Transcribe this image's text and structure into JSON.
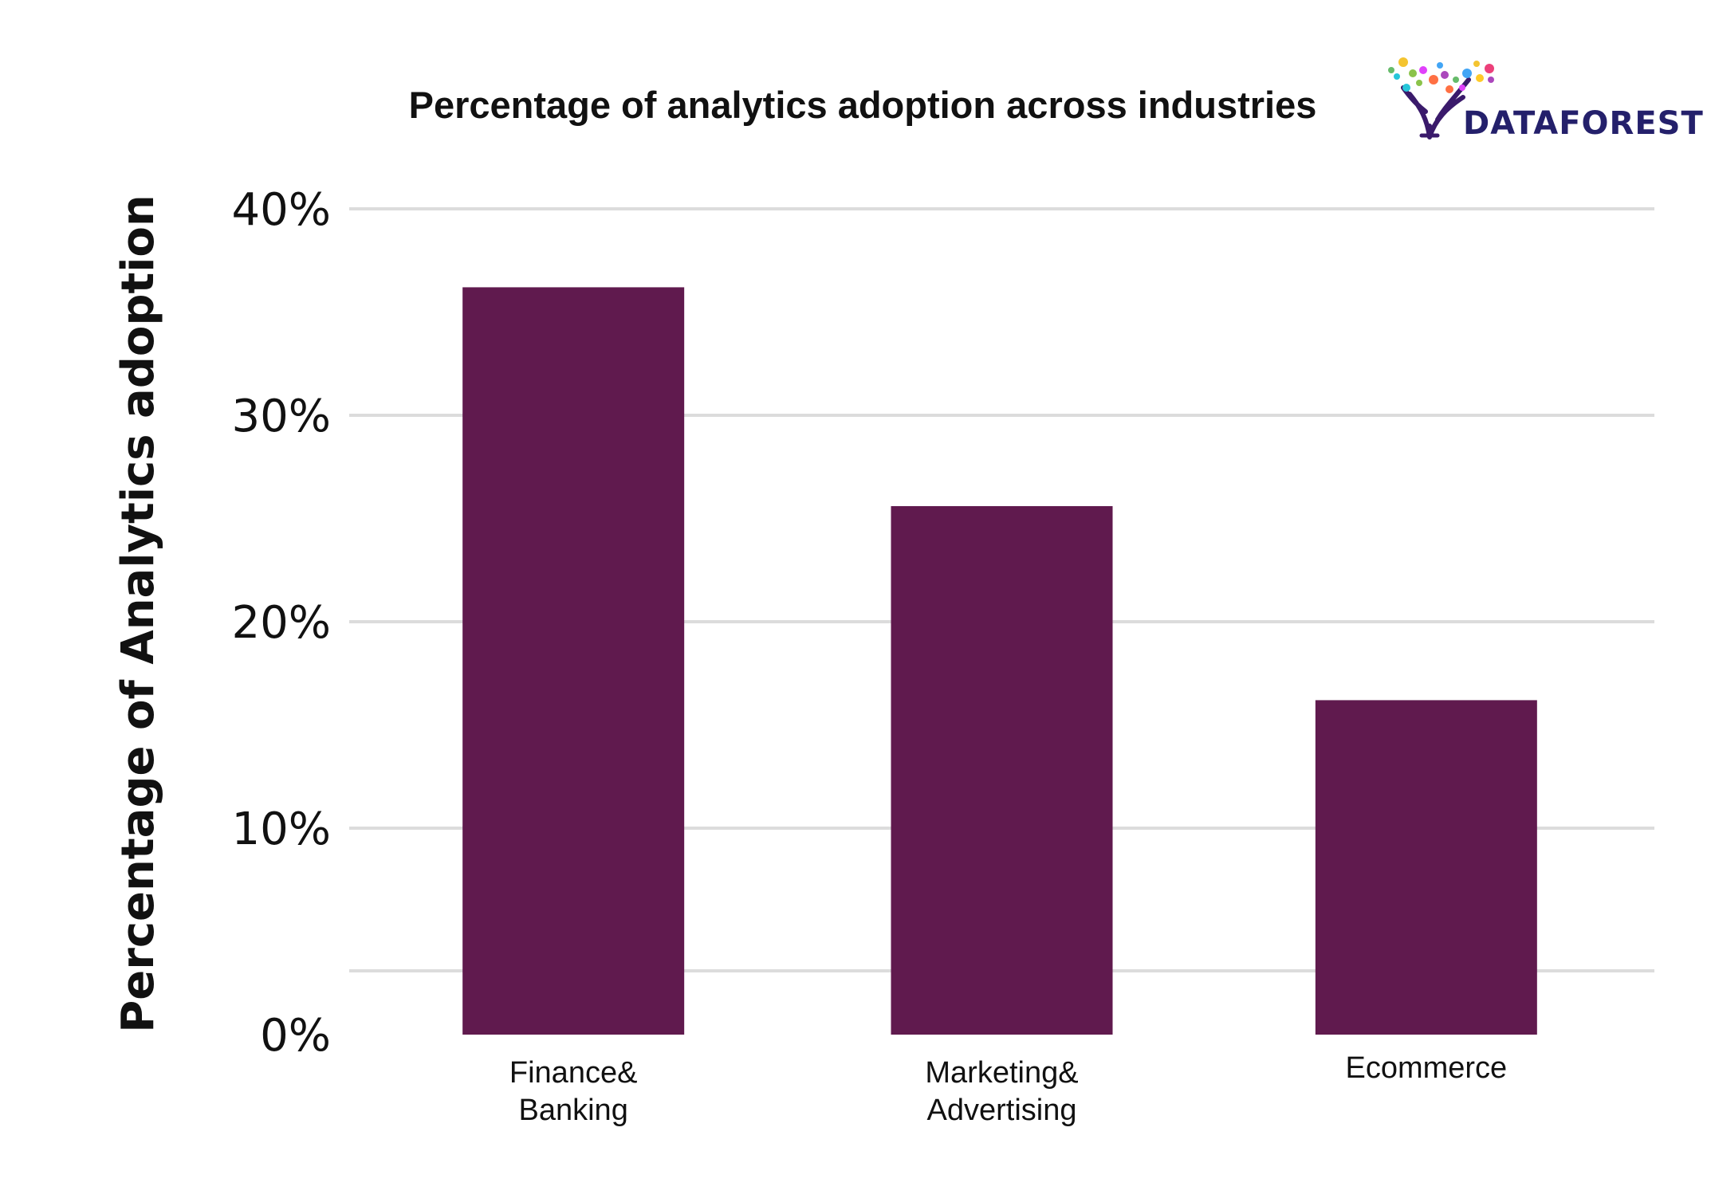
{
  "brand": {
    "name": "DATAFOREST",
    "text_color": "#24206b",
    "dot_colors": [
      "#f4c430",
      "#8bc34a",
      "#26c6da",
      "#e040fb",
      "#ff7043",
      "#ab47bc",
      "#66bb6a",
      "#42a5f5",
      "#ffca28",
      "#ec407a"
    ]
  },
  "chart_data": {
    "type": "bar",
    "title": "Percentage of analytics adoption across industries",
    "xlabel": "",
    "ylabel": "Percentage of Analytics adoption",
    "categories": [
      [
        "Finance&",
        "Banking"
      ],
      [
        "Marketing&",
        "Advertising"
      ],
      [
        "Ecommerce"
      ]
    ],
    "values": [
      36.2,
      25.6,
      16.2
    ],
    "ylim": [
      0,
      40
    ],
    "yticks": [
      0,
      10,
      20,
      30,
      40
    ],
    "ytick_labels": [
      "0%",
      "10%",
      "20%",
      "30%",
      "40%"
    ],
    "grid": true,
    "bar_color": "#601a4e",
    "grid_color": "#dcdcdc"
  }
}
